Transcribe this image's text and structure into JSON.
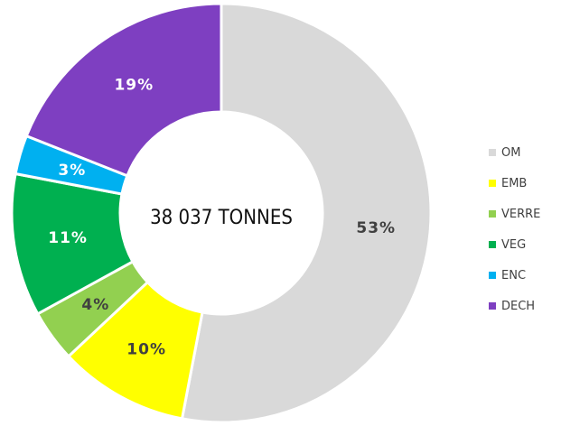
{
  "chart_data": {
    "type": "pie",
    "center_label": "38 037 TONNES",
    "legend_position": "right",
    "categories": [
      "OM",
      "EMB",
      "VERRE",
      "VEG",
      "ENC",
      "DECH"
    ],
    "values": [
      53,
      10,
      4,
      11,
      3,
      19
    ],
    "labels": [
      "53%",
      "10%",
      "4%",
      "11%",
      "3%",
      "19%"
    ],
    "colors": [
      "#d9d9d9",
      "#ffff00",
      "#92d050",
      "#00b050",
      "#00b0f0",
      "#7e3fc1"
    ],
    "label_colors": [
      "#404040",
      "#404040",
      "#404040",
      "#ffffff",
      "#ffffff",
      "#ffffff"
    ]
  }
}
